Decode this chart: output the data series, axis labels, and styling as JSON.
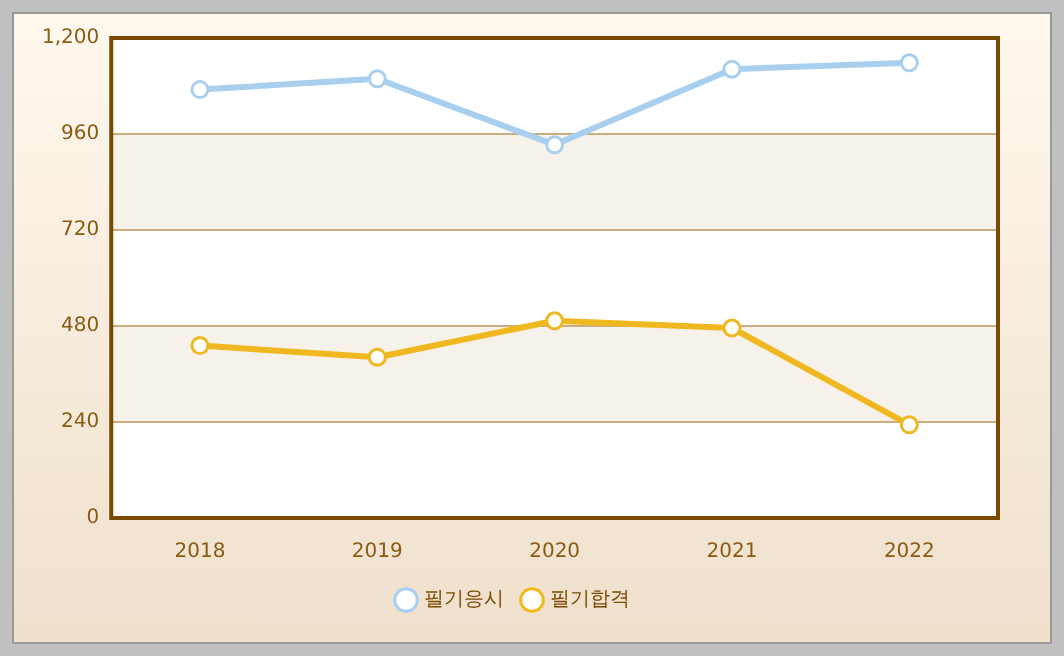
{
  "chart_data": {
    "type": "line",
    "categories": [
      "2018",
      "2019",
      "2020",
      "2021",
      "2022"
    ],
    "series": [
      {
        "name": "필기응시",
        "color": "#a8cfee",
        "values": [
          1071,
          1098,
          933,
          1122,
          1138
        ]
      },
      {
        "name": "필기합격",
        "color": "#f0b820",
        "values": [
          431,
          402,
          493,
          475,
          233
        ]
      }
    ],
    "ylim": [
      0,
      1200
    ],
    "yticks": [
      0,
      240,
      480,
      720,
      960,
      {
        "value": 1200,
        "label": "1,200"
      }
    ],
    "grid": "y",
    "legend": "bottom",
    "marker": "circle",
    "line_style": "solid"
  }
}
